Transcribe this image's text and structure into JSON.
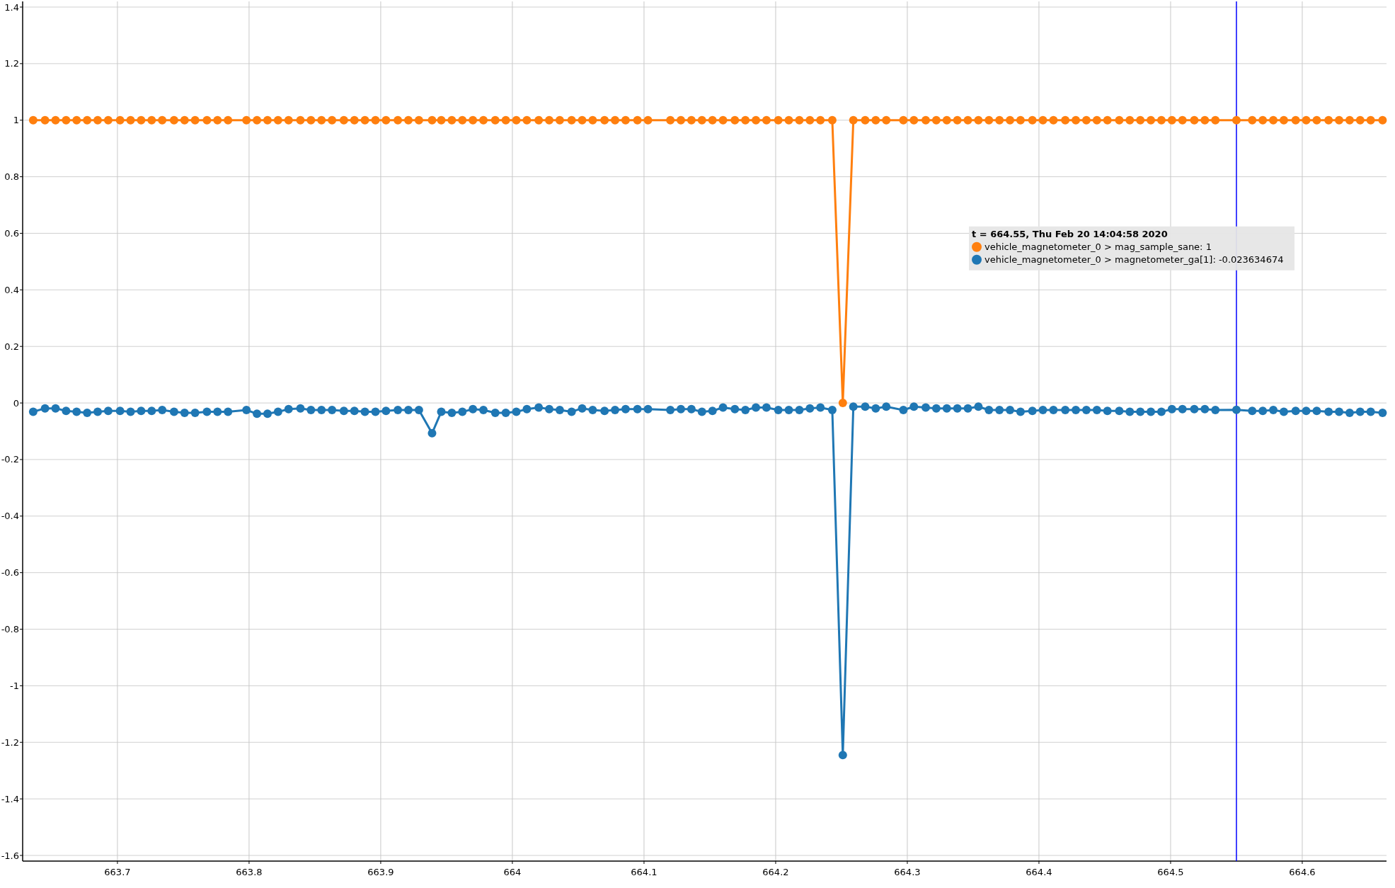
{
  "chart_data": {
    "type": "line",
    "xlim": [
      663.628,
      664.664
    ],
    "ylim": [
      -1.62,
      1.42
    ],
    "xticks": [
      663.7,
      663.8,
      663.9,
      664,
      664.1,
      664.2,
      664.3,
      664.4,
      664.5,
      664.6
    ],
    "yticks": [
      -1.6,
      -1.4,
      -1.2,
      -1,
      -0.8,
      -0.6,
      -0.4,
      -0.2,
      0,
      0.2,
      0.4,
      0.6,
      0.8,
      1,
      1.2,
      1.4
    ],
    "grid": true,
    "marker": "circle",
    "line_style": "solid",
    "legend": "right",
    "legend_title": "t = 664.55, Thu Feb 20 14:04:58 2020",
    "ref_lines": [
      {
        "axis": "x",
        "value": 664.55,
        "color": "#0000ff"
      }
    ],
    "x": [
      663.636,
      663.645,
      663.653,
      663.661,
      663.669,
      663.677,
      663.685,
      663.693,
      663.702,
      663.71,
      663.718,
      663.726,
      663.734,
      663.743,
      663.751,
      663.759,
      663.768,
      663.776,
      663.784,
      663.798,
      663.806,
      663.814,
      663.822,
      663.83,
      663.839,
      663.847,
      663.855,
      663.863,
      663.872,
      663.88,
      663.888,
      663.896,
      663.904,
      663.913,
      663.921,
      663.929,
      663.939,
      663.946,
      663.954,
      663.962,
      663.97,
      663.978,
      663.987,
      663.995,
      664.003,
      664.011,
      664.02,
      664.028,
      664.036,
      664.045,
      664.053,
      664.061,
      664.07,
      664.078,
      664.086,
      664.095,
      664.103,
      664.12,
      664.128,
      664.136,
      664.144,
      664.152,
      664.16,
      664.169,
      664.177,
      664.185,
      664.193,
      664.202,
      664.21,
      664.218,
      664.226,
      664.234,
      664.243,
      664.251,
      664.259,
      664.268,
      664.276,
      664.284,
      664.297,
      664.305,
      664.314,
      664.322,
      664.33,
      664.338,
      664.346,
      664.354,
      664.362,
      664.37,
      664.378,
      664.386,
      664.395,
      664.403,
      664.411,
      664.42,
      664.428,
      664.436,
      664.444,
      664.452,
      664.461,
      664.469,
      664.477,
      664.485,
      664.493,
      664.501,
      664.509,
      664.518,
      664.526,
      664.534,
      664.55,
      664.562,
      664.57,
      664.578,
      664.586,
      664.595,
      664.603,
      664.611,
      664.62,
      664.628,
      664.636,
      664.644,
      664.652,
      664.661
    ],
    "series": [
      {
        "name": "vehicle_magnetometer_0 > mag_sample_sane: 1",
        "color": "#ff7f0e",
        "values": [
          1,
          1,
          1,
          1,
          1,
          1,
          1,
          1,
          1,
          1,
          1,
          1,
          1,
          1,
          1,
          1,
          1,
          1,
          1,
          1,
          1,
          1,
          1,
          1,
          1,
          1,
          1,
          1,
          1,
          1,
          1,
          1,
          1,
          1,
          1,
          1,
          1,
          1,
          1,
          1,
          1,
          1,
          1,
          1,
          1,
          1,
          1,
          1,
          1,
          1,
          1,
          1,
          1,
          1,
          1,
          1,
          1,
          1,
          1,
          1,
          1,
          1,
          1,
          1,
          1,
          1,
          1,
          1,
          1,
          1,
          1,
          1,
          1,
          0,
          1,
          1,
          1,
          1,
          1,
          1,
          1,
          1,
          1,
          1,
          1,
          1,
          1,
          1,
          1,
          1,
          1,
          1,
          1,
          1,
          1,
          1,
          1,
          1,
          1,
          1,
          1,
          1,
          1,
          1,
          1,
          1,
          1,
          1,
          1,
          1,
          1,
          1,
          1,
          1,
          1,
          1,
          1,
          1,
          1,
          1,
          1,
          1
        ]
      },
      {
        "name": "vehicle_magnetometer_0 > magnetometer_ga[1]: -0.023634674",
        "color": "#1f77b4",
        "values": [
          -0.031,
          -0.019,
          -0.019,
          -0.028,
          -0.031,
          -0.035,
          -0.031,
          -0.028,
          -0.028,
          -0.031,
          -0.028,
          -0.028,
          -0.025,
          -0.031,
          -0.035,
          -0.035,
          -0.031,
          -0.031,
          -0.031,
          -0.025,
          -0.038,
          -0.038,
          -0.031,
          -0.022,
          -0.019,
          -0.025,
          -0.025,
          -0.025,
          -0.028,
          -0.028,
          -0.031,
          -0.031,
          -0.028,
          -0.025,
          -0.025,
          -0.025,
          -0.107,
          -0.031,
          -0.035,
          -0.031,
          -0.022,
          -0.025,
          -0.035,
          -0.035,
          -0.031,
          -0.022,
          -0.016,
          -0.022,
          -0.025,
          -0.031,
          -0.019,
          -0.025,
          -0.028,
          -0.025,
          -0.022,
          -0.022,
          -0.022,
          -0.025,
          -0.022,
          -0.022,
          -0.031,
          -0.028,
          -0.016,
          -0.022,
          -0.025,
          -0.016,
          -0.016,
          -0.025,
          -0.025,
          -0.025,
          -0.019,
          -0.016,
          -0.025,
          -1.245,
          -0.013,
          -0.013,
          -0.019,
          -0.013,
          -0.025,
          -0.013,
          -0.016,
          -0.019,
          -0.019,
          -0.019,
          -0.019,
          -0.013,
          -0.025,
          -0.025,
          -0.025,
          -0.031,
          -0.028,
          -0.025,
          -0.025,
          -0.025,
          -0.025,
          -0.025,
          -0.025,
          -0.028,
          -0.028,
          -0.031,
          -0.031,
          -0.031,
          -0.031,
          -0.022,
          -0.022,
          -0.022,
          -0.022,
          -0.025,
          -0.024,
          -0.028,
          -0.028,
          -0.025,
          -0.031,
          -0.028,
          -0.028,
          -0.028,
          -0.031,
          -0.031,
          -0.035,
          -0.031,
          -0.031,
          -0.035
        ]
      }
    ]
  }
}
